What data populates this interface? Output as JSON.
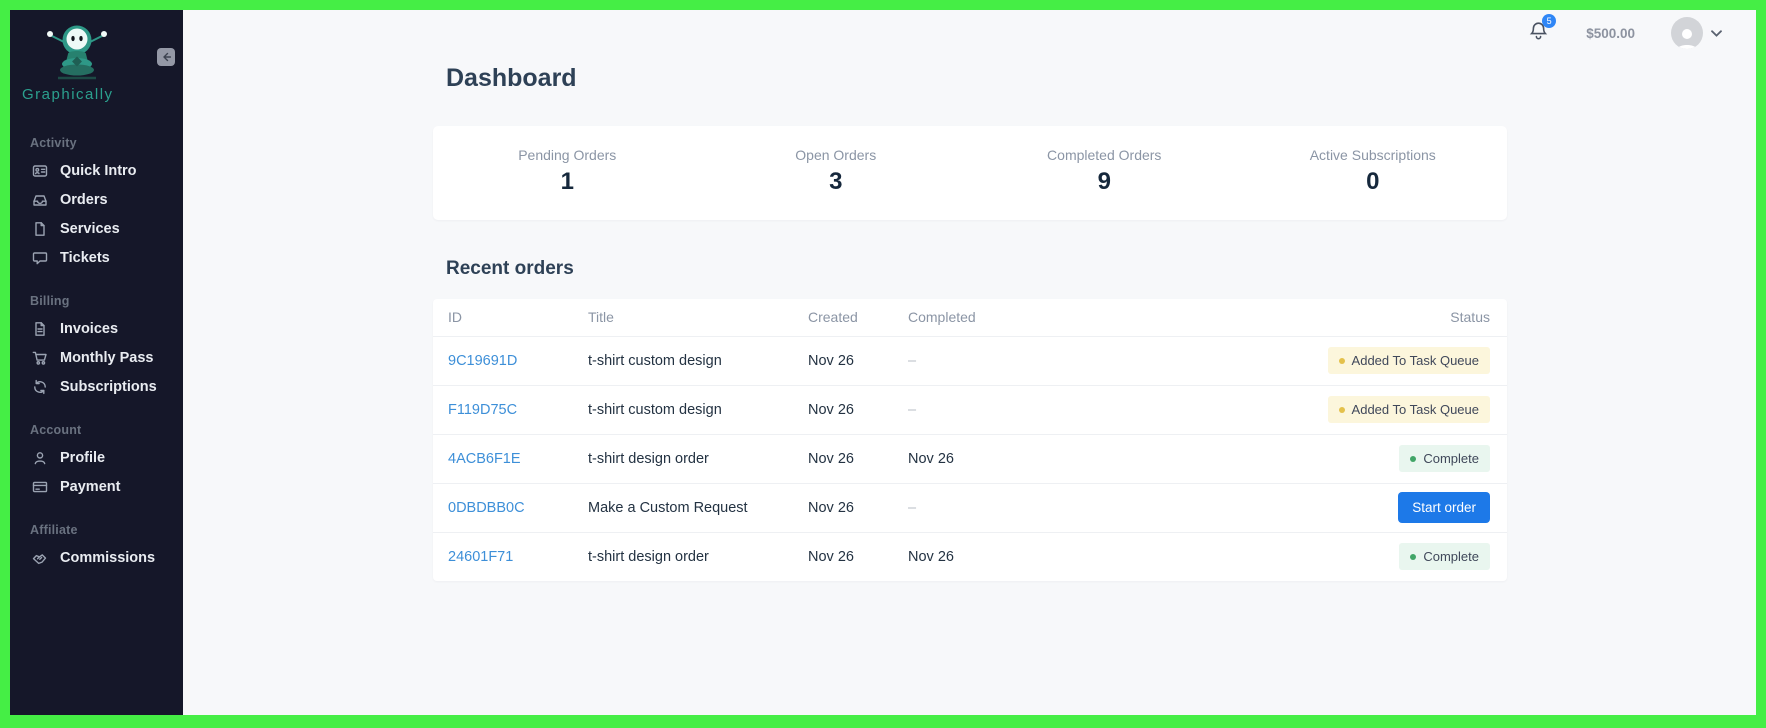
{
  "sidebar": {
    "brand": "Graphically",
    "sections": [
      {
        "label": "Activity",
        "items": [
          {
            "label": "Quick Intro",
            "icon": "id-card-icon"
          },
          {
            "label": "Orders",
            "icon": "inbox-icon"
          },
          {
            "label": "Services",
            "icon": "file-icon"
          },
          {
            "label": "Tickets",
            "icon": "comment-icon"
          }
        ]
      },
      {
        "label": "Billing",
        "items": [
          {
            "label": "Invoices",
            "icon": "invoice-icon"
          },
          {
            "label": "Monthly Pass",
            "icon": "cart-icon"
          },
          {
            "label": "Subscriptions",
            "icon": "sync-icon"
          }
        ]
      },
      {
        "label": "Account",
        "items": [
          {
            "label": "Profile",
            "icon": "user-icon"
          },
          {
            "label": "Payment",
            "icon": "credit-card-icon"
          }
        ]
      },
      {
        "label": "Affiliate",
        "items": [
          {
            "label": "Commissions",
            "icon": "handshake-icon"
          }
        ]
      }
    ]
  },
  "header": {
    "notification_count": "5",
    "balance": "$500.00"
  },
  "page": {
    "title": "Dashboard"
  },
  "stats": [
    {
      "label": "Pending Orders",
      "value": "1"
    },
    {
      "label": "Open Orders",
      "value": "3"
    },
    {
      "label": "Completed Orders",
      "value": "9"
    },
    {
      "label": "Active Subscriptions",
      "value": "0"
    }
  ],
  "recent_orders": {
    "heading": "Recent orders",
    "columns": [
      "ID",
      "Title",
      "Created",
      "Completed",
      "Status"
    ],
    "rows": [
      {
        "id": "9C19691D",
        "title": "t-shirt custom design",
        "created": "Nov 26",
        "completed": "–",
        "status": "Added To Task Queue",
        "status_type": "queued"
      },
      {
        "id": "F119D75C",
        "title": "t-shirt custom design",
        "created": "Nov 26",
        "completed": "–",
        "status": "Added To Task Queue",
        "status_type": "queued"
      },
      {
        "id": "4ACB6F1E",
        "title": "t-shirt design order",
        "created": "Nov 26",
        "completed": "Nov 26",
        "status": "Complete",
        "status_type": "complete"
      },
      {
        "id": "0DBDBB0C",
        "title": "Make a Custom Request",
        "created": "Nov 26",
        "completed": "–",
        "status": "Start order",
        "status_type": "action"
      },
      {
        "id": "24601F71",
        "title": "t-shirt design order",
        "created": "Nov 26",
        "completed": "Nov 26",
        "status": "Complete",
        "status_type": "complete"
      }
    ]
  },
  "colors": {
    "frame_green": "#45ee45",
    "sidebar_bg": "#151729",
    "brand_teal": "#2ba08e",
    "link_blue": "#3d8fd8",
    "button_blue": "#1d79e8",
    "badge_queued_bg": "#fcf6dc",
    "badge_queued_dot": "#e4c14b",
    "badge_complete_bg": "#e9f6ef",
    "badge_complete_dot": "#41a567",
    "page_bg": "#f7f8fa"
  }
}
